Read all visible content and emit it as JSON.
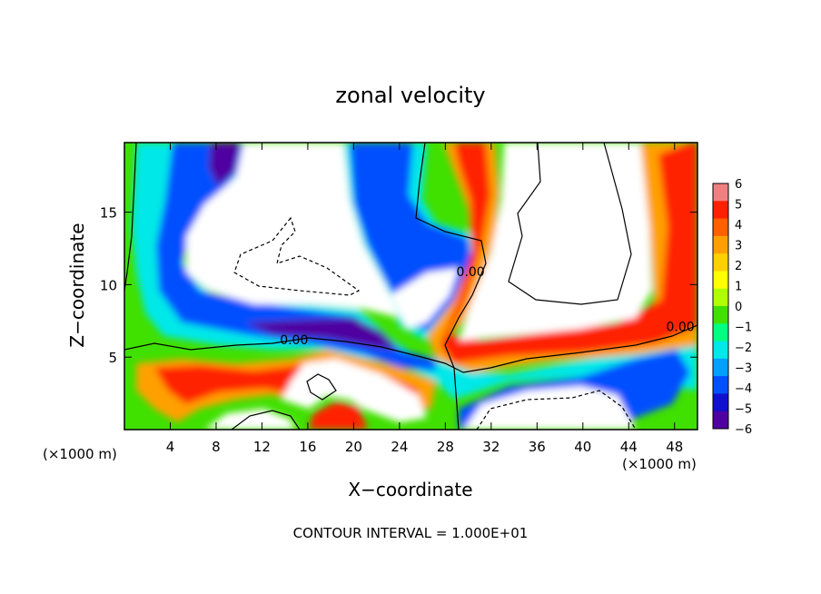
{
  "chart_data": {
    "type": "heatmap",
    "title": "zonal velocity",
    "xlabel": "X−coordinate",
    "ylabel": "Z−coordinate",
    "x_unit_left": "(×1000 m)",
    "x_unit_right": "(×1000 m)",
    "footnote": "CONTOUR INTERVAL = 1.000E+01",
    "xlim": [
      0,
      50
    ],
    "ylim": [
      0,
      19.8
    ],
    "x_ticks": [
      4,
      8,
      12,
      16,
      20,
      24,
      28,
      32,
      36,
      40,
      44,
      48
    ],
    "x_tick_labels": [
      "4",
      "8",
      "12",
      "16",
      "20",
      "24",
      "28",
      "32",
      "36",
      "40",
      "44",
      "48"
    ],
    "y_ticks": [
      5,
      10,
      15
    ],
    "y_tick_labels": [
      "5",
      "10",
      "15"
    ],
    "colorbar": {
      "min": -6,
      "max": 6,
      "ticks": [
        6,
        5,
        4,
        3,
        2,
        1,
        0,
        -1,
        -2,
        -3,
        -4,
        -5,
        -6
      ],
      "tick_labels": [
        "6",
        "5",
        "4",
        "3",
        "2",
        "1",
        "0",
        "−1",
        "−2",
        "−3",
        "−4",
        "−5",
        "−6"
      ],
      "colors": [
        "#f08080",
        "#ff2000",
        "#ff6000",
        "#ffa000",
        "#ffd000",
        "#ffff00",
        "#b0ff00",
        "#40e000",
        "#00ff80",
        "#00e8e8",
        "#00a0ff",
        "#0050ff",
        "#1010d0",
        "#5000a0"
      ]
    },
    "contour_labels": [
      {
        "text": "0.00",
        "x": 14.8,
        "y": 5.9
      },
      {
        "text": "0.00",
        "x": 30.2,
        "y": 10.6
      },
      {
        "text": "0.00",
        "x": 48.5,
        "y": 6.8
      }
    ]
  }
}
